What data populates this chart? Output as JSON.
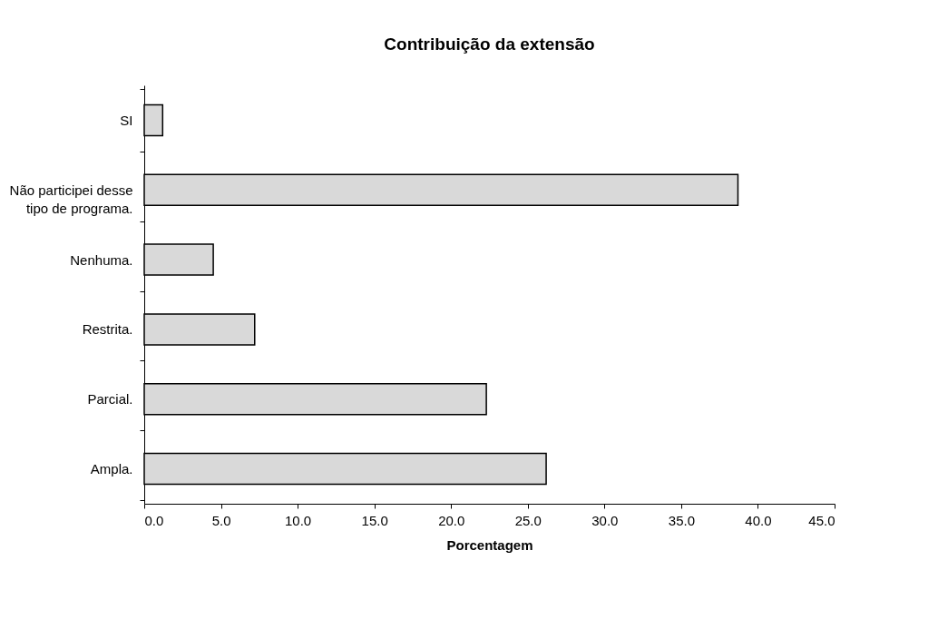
{
  "chart_data": {
    "type": "bar",
    "orientation": "horizontal",
    "title": "Contribuição da extensão",
    "xlabel": "Porcentagem",
    "categories": [
      "SI",
      "Não participei desse\ntipo de programa.",
      "Nenhuma.",
      "Restrita.",
      "Parcial.",
      "Ampla."
    ],
    "values": [
      1.2,
      38.7,
      4.5,
      7.2,
      22.3,
      26.2
    ],
    "color": "#d9d9d9",
    "xlim": [
      0,
      45
    ],
    "xticks": [
      {
        "value": 0,
        "label": "0.0"
      },
      {
        "value": 5,
        "label": "5.0"
      },
      {
        "value": 10,
        "label": "10.0"
      },
      {
        "value": 15,
        "label": "15.0"
      },
      {
        "value": 20,
        "label": "20.0"
      },
      {
        "value": 25,
        "label": "25.0"
      },
      {
        "value": 30,
        "label": "30.0"
      },
      {
        "value": 35,
        "label": "35.0"
      },
      {
        "value": 40,
        "label": "40.0"
      },
      {
        "value": 45,
        "label": "45.0"
      }
    ],
    "grid": false
  }
}
